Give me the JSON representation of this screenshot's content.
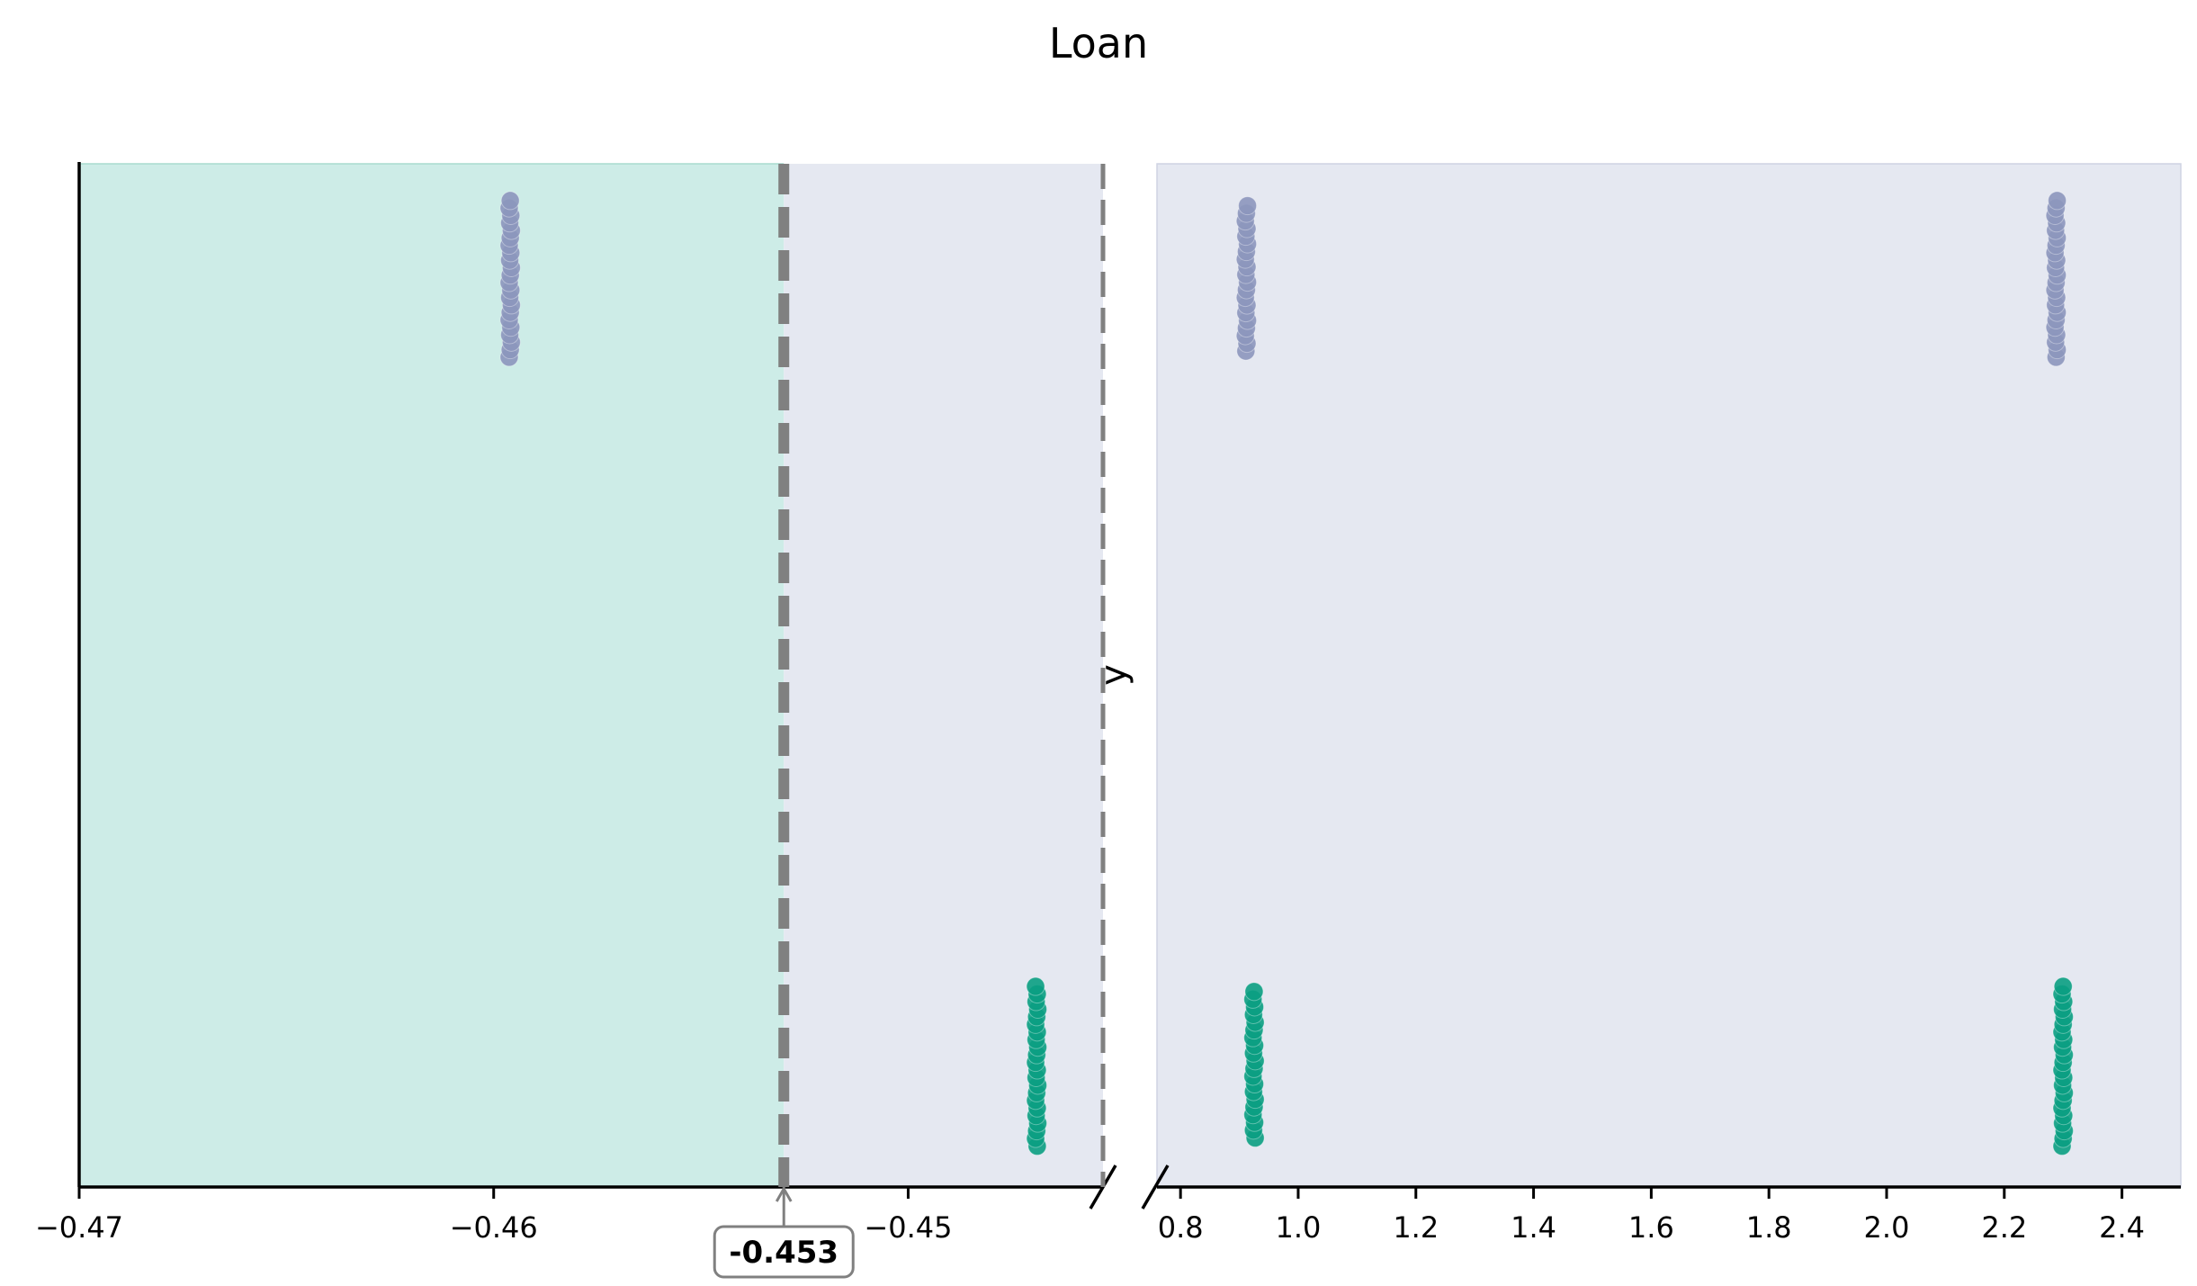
{
  "chart_data": {
    "type": "scatter",
    "title": "Loan",
    "xlabel": "",
    "ylabel": "y",
    "grid": false,
    "legend": "none",
    "colors": {
      "class0": "#8c96bc",
      "class1": "#0a9e82",
      "region_left": "#cdece7",
      "region_right": "#e5e8f1",
      "threshold_line": "#808080",
      "axis": "#000000"
    },
    "broken_axis": true,
    "panels": [
      {
        "name": "left",
        "xlim": [
          -0.47,
          -0.4453
        ],
        "xticks": [
          -0.47,
          -0.46,
          -0.45
        ],
        "xtick_labels": [
          "−0.47",
          "−0.46",
          "−0.45"
        ]
      },
      {
        "name": "right",
        "xlim": [
          0.76,
          2.5
        ],
        "xticks": [
          0.8,
          1.0,
          1.2,
          1.4,
          1.6,
          1.8,
          2.0,
          2.2,
          2.4
        ],
        "xtick_labels": [
          "0.8",
          "1.0",
          "1.2",
          "1.4",
          "1.6",
          "1.8",
          "2.0",
          "2.2",
          "2.4"
        ]
      }
    ],
    "threshold": {
      "value": -0.453,
      "label": "-0.453"
    },
    "series": [
      {
        "class": 0,
        "x": -0.4596,
        "y_min": 0.811,
        "y_max": 0.964,
        "count": 22
      },
      {
        "class": 1,
        "x": -0.4469,
        "y_min": 0.04,
        "y_max": 0.196,
        "count": 22
      },
      {
        "class": 0,
        "x": 0.912,
        "y_min": 0.817,
        "y_max": 0.959,
        "count": 20
      },
      {
        "class": 1,
        "x": 0.925,
        "y_min": 0.048,
        "y_max": 0.191,
        "count": 20
      },
      {
        "class": 0,
        "x": 2.288,
        "y_min": 0.811,
        "y_max": 0.964,
        "count": 22
      },
      {
        "class": 1,
        "x": 2.3,
        "y_min": 0.04,
        "y_max": 0.196,
        "count": 22
      }
    ]
  }
}
